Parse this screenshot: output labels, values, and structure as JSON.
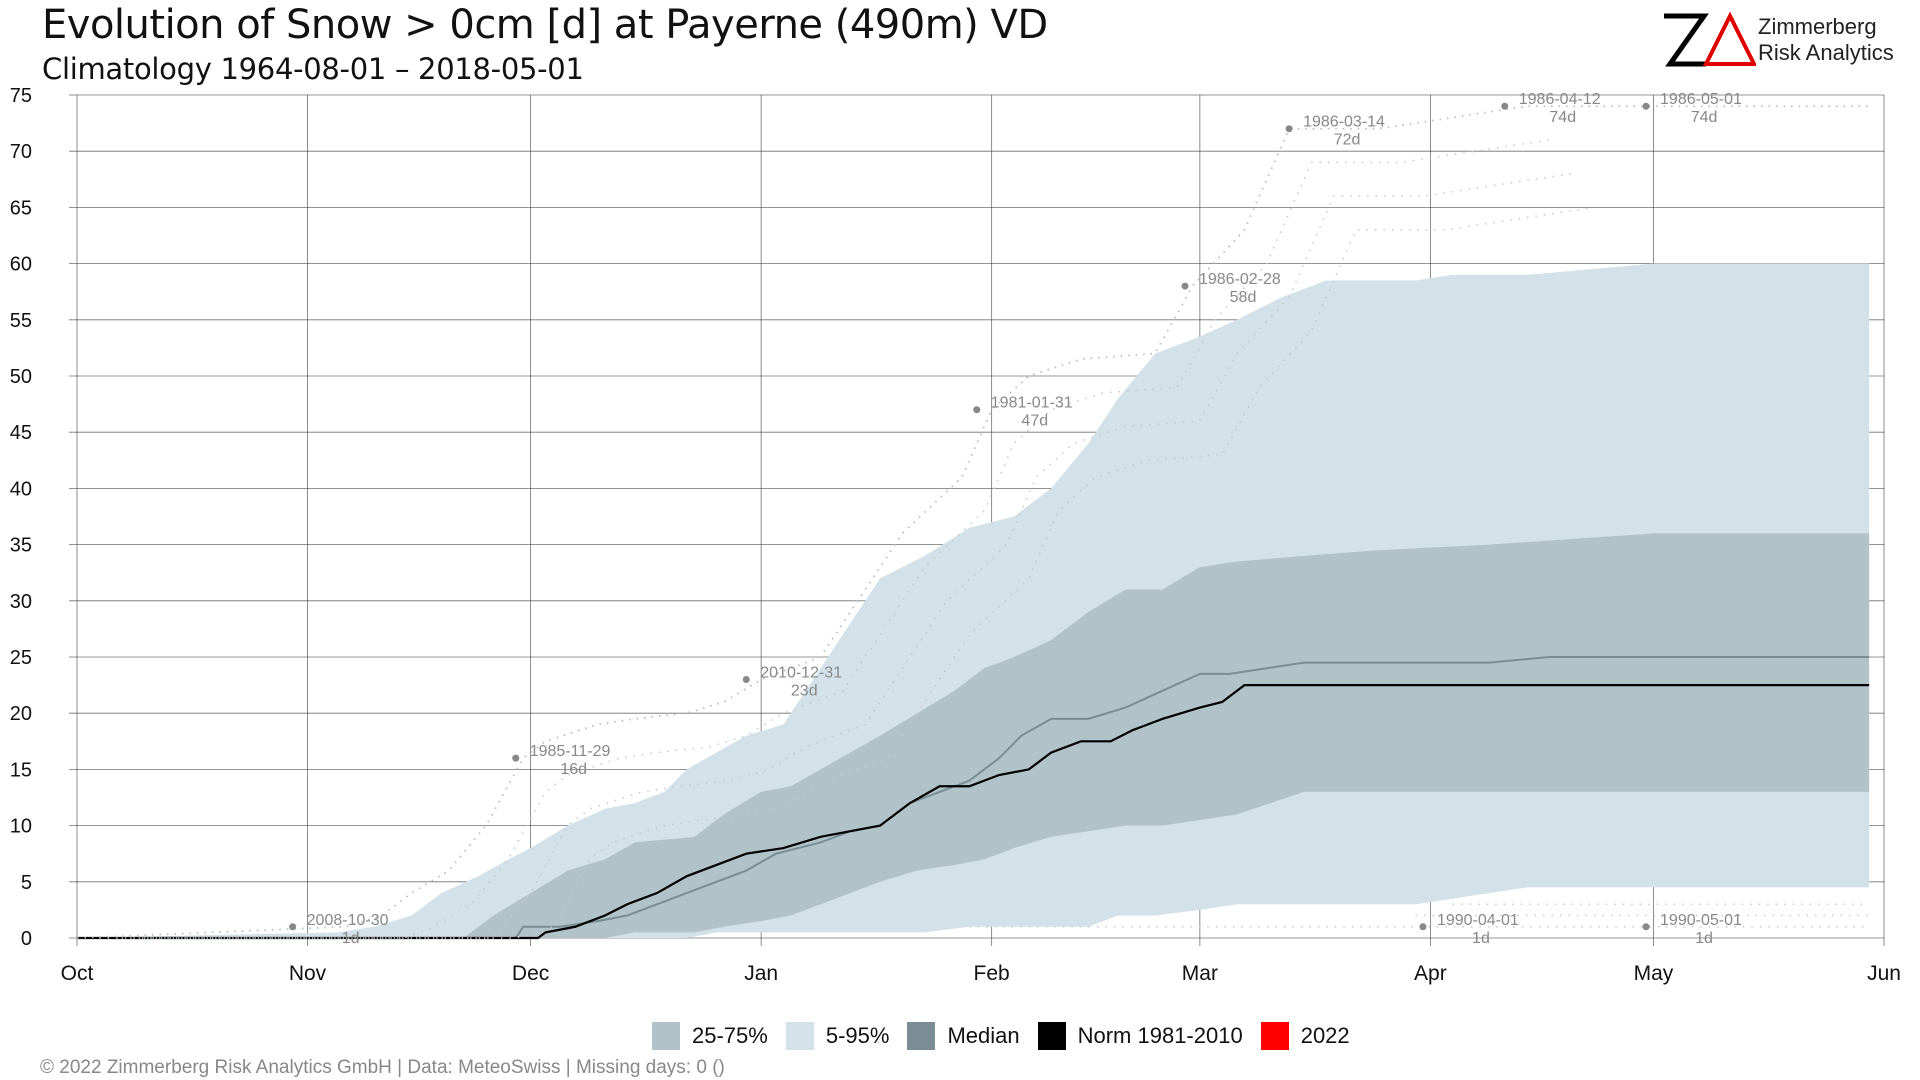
{
  "header": {
    "title": "Evolution of Snow > 0cm [d] at Payerne (490m) VD",
    "subtitle": "Climatology 1964-08-01 – 2018-05-01"
  },
  "logo": {
    "line1": "Zimmerberg",
    "line2": "Risk Analytics",
    "mark": "ZA"
  },
  "colors": {
    "band_25_75": "#b1c3c9",
    "band_5_95": "#d2e2e8",
    "median": "#7a8c94",
    "norm": "#000000",
    "current_2022": "#ff0000",
    "annotation": "#888888",
    "grid": "#333333"
  },
  "legend": [
    {
      "label": "25-75%",
      "color": "#b1c3c9"
    },
    {
      "label": "5-95%",
      "color": "#d2e2e8"
    },
    {
      "label": "Median",
      "color": "#7a8c94"
    },
    {
      "label": "Norm 1981-2010",
      "color": "#000000"
    },
    {
      "label": "2022",
      "color": "#ff0000"
    }
  ],
  "footer": "©  2022 Zimmerberg Risk Analytics GmbH | Data: MeteoSwiss | Missing days: 0 ()",
  "chart_data": {
    "type": "area",
    "title": "Evolution of Snow > 0cm [d] at Payerne (490m) VD",
    "subtitle": "Climatology 1964-08-01 – 2018-05-01",
    "xlabel": "",
    "ylabel": "",
    "x_tick_labels": [
      "Oct",
      "Nov",
      "Dec",
      "Jan",
      "Feb",
      "Mar",
      "Apr",
      "May",
      "Jun"
    ],
    "x_tick_days": [
      0,
      31,
      61,
      92,
      123,
      151,
      182,
      212,
      243
    ],
    "xlim_days": [
      0,
      243
    ],
    "ylim": [
      0,
      75
    ],
    "y_ticks": [
      0,
      5,
      10,
      15,
      20,
      25,
      30,
      35,
      40,
      45,
      50,
      55,
      60,
      65,
      70,
      75
    ],
    "grid": true,
    "legend_position": "bottom",
    "x_unit": "days since Oct 1",
    "p5_p95": [
      [
        0,
        0,
        0
      ],
      [
        35,
        0,
        0.5
      ],
      [
        40,
        0,
        1
      ],
      [
        45,
        0,
        2
      ],
      [
        49,
        0,
        4
      ],
      [
        54,
        0,
        5.5
      ],
      [
        58,
        0,
        7
      ],
      [
        61,
        0,
        8
      ],
      [
        66,
        0,
        10
      ],
      [
        71,
        0,
        11.5
      ],
      [
        75,
        0,
        12
      ],
      [
        79,
        0,
        13
      ],
      [
        82,
        0,
        15
      ],
      [
        86,
        0.5,
        16.5
      ],
      [
        90,
        0.5,
        18
      ],
      [
        95,
        0.5,
        19
      ],
      [
        98,
        0.5,
        22
      ],
      [
        104,
        0.5,
        28
      ],
      [
        108,
        0.5,
        32
      ],
      [
        114,
        0.5,
        34
      ],
      [
        120,
        1,
        36.5
      ],
      [
        126,
        1,
        37.5
      ],
      [
        131,
        1,
        40
      ],
      [
        136,
        1,
        44
      ],
      [
        140,
        2,
        48
      ],
      [
        145,
        2,
        52
      ],
      [
        151,
        2.5,
        53.5
      ],
      [
        156,
        3,
        55
      ],
      [
        162,
        3,
        57
      ],
      [
        168,
        3,
        58.5
      ],
      [
        180,
        3,
        58.5
      ],
      [
        185,
        3.5,
        59
      ],
      [
        195,
        4.5,
        59
      ],
      [
        212,
        4.5,
        60
      ],
      [
        241,
        4.5,
        60
      ]
    ],
    "p25_p75": [
      [
        0,
        0,
        0
      ],
      [
        52,
        0,
        0
      ],
      [
        56,
        0,
        2
      ],
      [
        61,
        0,
        4
      ],
      [
        66,
        0,
        6
      ],
      [
        71,
        0,
        7
      ],
      [
        75,
        0.5,
        8.5
      ],
      [
        83,
        0.5,
        9
      ],
      [
        87,
        1,
        11
      ],
      [
        92,
        1.5,
        13
      ],
      [
        96,
        2,
        13.5
      ],
      [
        100,
        3,
        15
      ],
      [
        104,
        4,
        16.5
      ],
      [
        108,
        5,
        18
      ],
      [
        113,
        6,
        20
      ],
      [
        118,
        6.5,
        22
      ],
      [
        122,
        7,
        24
      ],
      [
        126,
        8,
        25
      ],
      [
        131,
        9,
        26.5
      ],
      [
        136,
        9.5,
        29
      ],
      [
        141,
        10,
        31
      ],
      [
        146,
        10,
        31
      ],
      [
        151,
        10.5,
        33
      ],
      [
        156,
        11,
        33.5
      ],
      [
        165,
        13,
        34
      ],
      [
        175,
        13,
        34.5
      ],
      [
        190,
        13,
        35
      ],
      [
        212,
        13,
        36
      ],
      [
        241,
        13,
        36
      ]
    ],
    "median": [
      [
        0,
        0
      ],
      [
        59,
        0
      ],
      [
        60,
        1
      ],
      [
        65,
        1
      ],
      [
        70,
        1.5
      ],
      [
        74,
        2
      ],
      [
        78,
        3
      ],
      [
        82,
        4
      ],
      [
        86,
        5
      ],
      [
        90,
        6
      ],
      [
        94,
        7.5
      ],
      [
        100,
        8.5
      ],
      [
        104,
        9.5
      ],
      [
        108,
        10
      ],
      [
        112,
        12
      ],
      [
        116,
        13
      ],
      [
        120,
        14
      ],
      [
        124,
        16
      ],
      [
        127,
        18
      ],
      [
        131,
        19.5
      ],
      [
        136,
        19.5
      ],
      [
        141,
        20.5
      ],
      [
        146,
        22
      ],
      [
        151,
        23.5
      ],
      [
        155,
        23.5
      ],
      [
        160,
        24
      ],
      [
        165,
        24.5
      ],
      [
        175,
        24.5
      ],
      [
        190,
        24.5
      ],
      [
        198,
        25
      ],
      [
        241,
        25
      ]
    ],
    "norm_1981_2010": [
      [
        0,
        0
      ],
      [
        62,
        0
      ],
      [
        63,
        0.5
      ],
      [
        67,
        1
      ],
      [
        71,
        2
      ],
      [
        74,
        3
      ],
      [
        78,
        4
      ],
      [
        82,
        5.5
      ],
      [
        86,
        6.5
      ],
      [
        90,
        7.5
      ],
      [
        95,
        8
      ],
      [
        100,
        9
      ],
      [
        104,
        9.5
      ],
      [
        108,
        10
      ],
      [
        112,
        12
      ],
      [
        116,
        13.5
      ],
      [
        120,
        13.5
      ],
      [
        124,
        14.5
      ],
      [
        128,
        15
      ],
      [
        131,
        16.5
      ],
      [
        135,
        17.5
      ],
      [
        139,
        17.5
      ],
      [
        142,
        18.5
      ],
      [
        146,
        19.5
      ],
      [
        151,
        20.5
      ],
      [
        154,
        21
      ],
      [
        157,
        22.5
      ],
      [
        241,
        22.5
      ]
    ],
    "series_2022": [],
    "record_upper": [
      [
        0,
        0
      ],
      [
        36,
        1
      ],
      [
        41,
        2
      ],
      [
        45,
        4
      ],
      [
        50,
        6
      ],
      [
        55,
        10
      ],
      [
        60,
        16
      ],
      [
        63,
        17.5
      ],
      [
        70,
        19
      ],
      [
        75,
        19.5
      ],
      [
        82,
        20
      ],
      [
        87,
        21
      ],
      [
        92,
        23
      ],
      [
        100,
        25
      ],
      [
        105,
        30
      ],
      [
        111,
        36
      ],
      [
        119,
        41
      ],
      [
        123,
        47
      ],
      [
        128,
        50
      ],
      [
        135,
        51.5
      ],
      [
        145,
        52
      ],
      [
        150,
        58
      ],
      [
        157,
        63
      ],
      [
        163,
        72
      ],
      [
        175,
        72
      ],
      [
        185,
        73
      ],
      [
        195,
        74
      ],
      [
        241,
        74
      ]
    ],
    "record_lower_markers": [
      {
        "date": "1990-04-01",
        "value": 1,
        "x": 179
      },
      {
        "date": "1990-05-01",
        "value": 1,
        "x": 209
      }
    ],
    "annotations": [
      {
        "date": "2008-10-30",
        "value": 1,
        "label": "1d",
        "x": 29
      },
      {
        "date": "1985-11-29",
        "value": 16,
        "label": "16d",
        "x": 59
      },
      {
        "date": "2010-12-31",
        "value": 23,
        "label": "23d",
        "x": 90
      },
      {
        "date": "1981-01-31",
        "value": 47,
        "label": "47d",
        "x": 121
      },
      {
        "date": "1986-02-28",
        "value": 58,
        "label": "58d",
        "x": 149
      },
      {
        "date": "1986-03-14",
        "value": 72,
        "label": "72d",
        "x": 163
      },
      {
        "date": "1986-04-12",
        "value": 74,
        "label": "74d",
        "x": 192
      },
      {
        "date": "1986-05-01",
        "value": 74,
        "label": "74d",
        "x": 211
      },
      {
        "date": "1990-04-01",
        "value": 1,
        "label": "1d",
        "x": 181
      },
      {
        "date": "1990-05-01",
        "value": 1,
        "label": "1d",
        "x": 211
      }
    ]
  }
}
